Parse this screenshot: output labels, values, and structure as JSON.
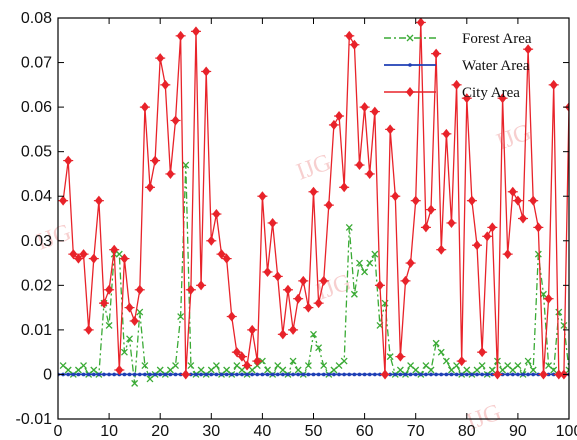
{
  "watermark": "IJG",
  "chart_data": {
    "type": "line",
    "xlim": [
      0,
      100
    ],
    "ylim": [
      -0.01,
      0.08
    ],
    "x_ticks": [
      0,
      10,
      20,
      30,
      40,
      50,
      60,
      70,
      80,
      90,
      100
    ],
    "x_tick_labels": [
      "0",
      "10",
      "20",
      "30",
      "40",
      "50",
      "60",
      "70",
      "80",
      "90",
      "100"
    ],
    "y_ticks": [
      -0.01,
      0,
      0.01,
      0.02,
      0.03,
      0.04,
      0.05,
      0.06,
      0.07,
      0.08
    ],
    "y_tick_labels": [
      "-0.01",
      "0",
      "0.01",
      "0.02",
      "0.03",
      "0.04",
      "0.05",
      "0.06",
      "0.07",
      "0.08"
    ],
    "grid": false,
    "legend_position": "top-right",
    "series": [
      {
        "name": "Forest Area",
        "color": "#3aaa35",
        "style": "dash-dot",
        "marker": "x",
        "x": [
          1,
          2,
          3,
          4,
          5,
          6,
          7,
          8,
          9,
          10,
          11,
          12,
          13,
          14,
          15,
          16,
          17,
          18,
          19,
          20,
          21,
          22,
          23,
          24,
          25,
          26,
          27,
          28,
          29,
          30,
          31,
          32,
          33,
          34,
          35,
          36,
          37,
          38,
          39,
          40,
          41,
          42,
          43,
          44,
          45,
          46,
          47,
          48,
          49,
          50,
          51,
          52,
          53,
          54,
          55,
          56,
          57,
          58,
          59,
          60,
          61,
          62,
          63,
          64,
          65,
          66,
          67,
          68,
          69,
          70,
          71,
          72,
          73,
          74,
          75,
          76,
          77,
          78,
          79,
          80,
          81,
          82,
          83,
          84,
          85,
          86,
          87,
          88,
          89,
          90,
          91,
          92,
          93,
          94,
          95,
          96,
          97,
          98,
          99,
          100
        ],
        "values": [
          0.002,
          0.001,
          0.0,
          0.001,
          0.002,
          0.0,
          0.001,
          0.0,
          0.016,
          0.011,
          0.027,
          0.027,
          0.005,
          0.008,
          -0.002,
          0.014,
          0.002,
          -0.001,
          0.0,
          0.001,
          0.0,
          0.001,
          0.002,
          0.013,
          0.047,
          0.002,
          0.0,
          0.001,
          0.0,
          0.001,
          0.002,
          0.0,
          0.001,
          0.0,
          0.002,
          0.001,
          0.0,
          0.001,
          0.002,
          0.003,
          0.001,
          0.0,
          0.002,
          0.001,
          0.0,
          0.003,
          0.001,
          0.0,
          0.002,
          0.009,
          0.006,
          0.002,
          0.0,
          0.001,
          0.002,
          0.003,
          0.033,
          0.018,
          0.025,
          0.023,
          0.025,
          0.027,
          0.011,
          0.016,
          0.004,
          0.0,
          0.001,
          0.0,
          0.002,
          0.001,
          0.0,
          0.002,
          0.001,
          0.007,
          0.005,
          0.003,
          0.001,
          0.002,
          0.0,
          0.001,
          0.0,
          0.001,
          0.002,
          0.0,
          0.001,
          0.003,
          0.001,
          0.002,
          0.001,
          0.002,
          0.0,
          0.003,
          0.001,
          0.027,
          0.018,
          0.002,
          0.001,
          0.014,
          0.011,
          0.001
        ]
      },
      {
        "name": "Water Area",
        "color": "#1f3fb5",
        "style": "solid",
        "marker": "dot",
        "x": [
          0,
          1,
          2,
          3,
          4,
          5,
          6,
          7,
          8,
          9,
          10,
          11,
          12,
          13,
          14,
          15,
          16,
          17,
          18,
          19,
          20,
          21,
          22,
          23,
          24,
          25,
          26,
          27,
          28,
          29,
          30,
          31,
          32,
          33,
          34,
          35,
          36,
          37,
          38,
          39,
          40,
          41,
          42,
          43,
          44,
          45,
          46,
          47,
          48,
          49,
          50,
          51,
          52,
          53,
          54,
          55,
          56,
          57,
          58,
          59,
          60,
          61,
          62,
          63,
          64,
          65,
          66,
          67,
          68,
          69,
          70,
          71,
          72,
          73,
          74,
          75,
          76,
          77,
          78,
          79,
          80,
          81,
          82,
          83,
          84,
          85,
          86,
          87,
          88,
          89,
          90,
          91,
          92,
          93,
          94,
          95,
          96,
          97,
          98,
          99,
          100
        ],
        "values": [
          0,
          0,
          0,
          0,
          0,
          0,
          0,
          0,
          0,
          0,
          0,
          0,
          0,
          0,
          0,
          0,
          0,
          0,
          0,
          0,
          0,
          0,
          0,
          0,
          0,
          0,
          0,
          0,
          0,
          0,
          0,
          0,
          0,
          0,
          0,
          0,
          0,
          0,
          0,
          0,
          0,
          0,
          0,
          0,
          0,
          0,
          0,
          0,
          0,
          0,
          0,
          0,
          0,
          0,
          0,
          0,
          0,
          0,
          0,
          0,
          0,
          0,
          0,
          0,
          0,
          0,
          0,
          0,
          0,
          0,
          0,
          0,
          0,
          0,
          0,
          0,
          0,
          0,
          0,
          0,
          0,
          0,
          0,
          0,
          0,
          0,
          0,
          0,
          0,
          0,
          0,
          0,
          0,
          0,
          0,
          0,
          0,
          0,
          0,
          0,
          0
        ]
      },
      {
        "name": "City Area",
        "color": "#e8232a",
        "style": "solid",
        "marker": "diamond",
        "x": [
          1,
          2,
          3,
          4,
          5,
          6,
          7,
          8,
          9,
          10,
          11,
          12,
          13,
          14,
          15,
          16,
          17,
          18,
          19,
          20,
          21,
          22,
          23,
          24,
          25,
          26,
          27,
          28,
          29,
          30,
          31,
          32,
          33,
          34,
          35,
          36,
          37,
          38,
          39,
          40,
          41,
          42,
          43,
          44,
          45,
          46,
          47,
          48,
          49,
          50,
          51,
          52,
          53,
          54,
          55,
          56,
          57,
          58,
          59,
          60,
          61,
          62,
          63,
          64,
          65,
          66,
          67,
          68,
          69,
          70,
          71,
          72,
          73,
          74,
          75,
          76,
          77,
          78,
          79,
          80,
          81,
          82,
          83,
          84,
          85,
          86,
          87,
          88,
          89,
          90,
          91,
          92,
          93,
          94,
          95,
          96,
          97,
          98,
          99,
          100
        ],
        "values": [
          0.039,
          0.048,
          0.027,
          0.026,
          0.027,
          0.01,
          0.026,
          0.039,
          0.016,
          0.019,
          0.028,
          0.001,
          0.026,
          0.015,
          0.012,
          0.019,
          0.06,
          0.042,
          0.048,
          0.071,
          0.065,
          0.045,
          0.057,
          0.076,
          0.0,
          0.019,
          0.077,
          0.02,
          0.068,
          0.03,
          0.036,
          0.027,
          0.026,
          0.013,
          0.005,
          0.004,
          0.002,
          0.01,
          0.003,
          0.04,
          0.023,
          0.034,
          0.022,
          0.009,
          0.019,
          0.01,
          0.017,
          0.021,
          0.015,
          0.041,
          0.016,
          0.021,
          0.038,
          0.056,
          0.058,
          0.042,
          0.076,
          0.074,
          0.047,
          0.06,
          0.045,
          0.059,
          0.02,
          0.0,
          0.055,
          0.04,
          0.004,
          0.021,
          0.025,
          0.039,
          0.079,
          0.033,
          0.037,
          0.072,
          0.028,
          0.054,
          0.034,
          0.065,
          0.003,
          0.062,
          0.039,
          0.029,
          0.005,
          0.031,
          0.033,
          0.0,
          0.062,
          0.027,
          0.041,
          0.039,
          0.035,
          0.073,
          0.039,
          0.033,
          0.0,
          0.017,
          0.065,
          0.0,
          0.0,
          0.06
        ]
      }
    ]
  }
}
